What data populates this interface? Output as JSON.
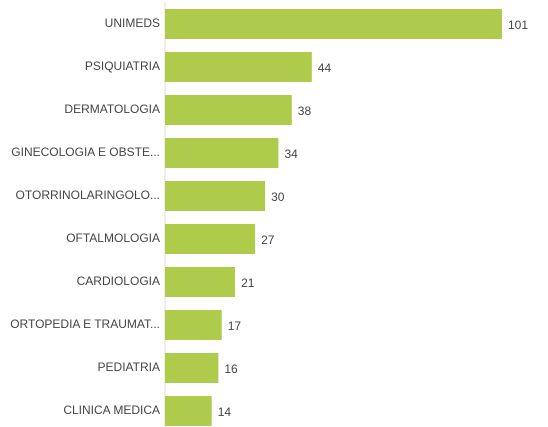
{
  "chart_data": {
    "type": "bar",
    "orientation": "horizontal",
    "color": "#afcb4b",
    "categories": [
      "UNIMEDS",
      "PSIQUIATRIA",
      "DERMATOLOGIA",
      "GINECOLOGIA E OBSTE...",
      "OTORRINOLARINGOLO...",
      "OFTALMOLOGIA",
      "CARDIOLOGIA",
      "ORTOPEDIA E TRAUMAT...",
      "PEDIATRIA",
      "CLINICA MEDICA"
    ],
    "values": [
      101,
      44,
      38,
      34,
      30,
      27,
      21,
      17,
      16,
      14
    ]
  }
}
